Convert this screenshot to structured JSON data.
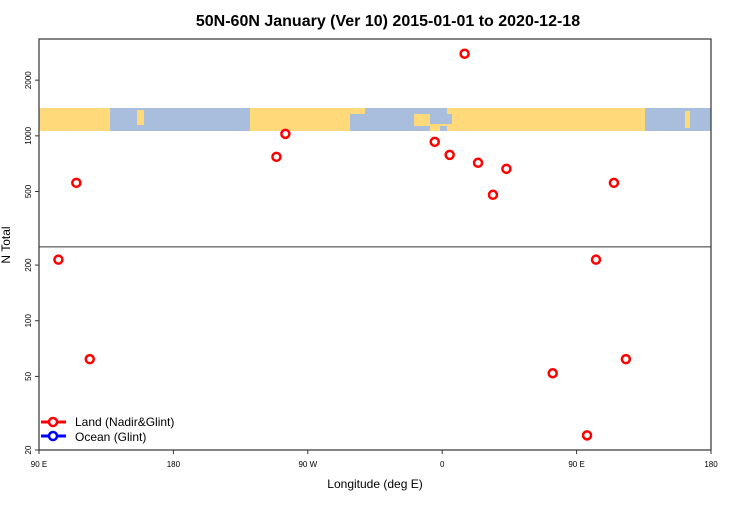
{
  "chart_data": {
    "type": "scatter",
    "title": "50N-60N January (Ver 10)   2015-01-01 to 2020-12-18",
    "xlabel": "Longitude (deg E)",
    "ylabel": "N Total",
    "xlim": [
      90,
      540
    ],
    "ylim": [
      20,
      3340
    ],
    "yscale": "log",
    "grid": false,
    "x_ticks": [
      {
        "value": 90,
        "label": "90 E"
      },
      {
        "value": 180,
        "label": "180"
      },
      {
        "value": 270,
        "label": "90 W"
      },
      {
        "value": 360,
        "label": "0"
      },
      {
        "value": 450,
        "label": "90 E"
      },
      {
        "value": 540,
        "label": "180"
      }
    ],
    "y_ticks": [
      {
        "value": 20,
        "label": "20"
      },
      {
        "value": 50,
        "label": "50"
      },
      {
        "value": 100,
        "label": "100"
      },
      {
        "value": 200,
        "label": "200"
      },
      {
        "value": 500,
        "label": "500"
      },
      {
        "value": 1000,
        "label": "1000"
      },
      {
        "value": 2000,
        "label": "2000"
      }
    ],
    "divider_value": 251,
    "legend_placement": "bottom-left",
    "series": [
      {
        "name": "Land (Nadir&Glint)",
        "color": "#ff0000",
        "points": [
          [
            103,
            214
          ],
          [
            115,
            557
          ],
          [
            124,
            62
          ],
          [
            249,
            770
          ],
          [
            255,
            1025
          ],
          [
            375,
            2780
          ],
          [
            355,
            928
          ],
          [
            365,
            789
          ],
          [
            384,
            715
          ],
          [
            394,
            480
          ],
          [
            403,
            663
          ],
          [
            434,
            52
          ],
          [
            457,
            24
          ],
          [
            463,
            214
          ],
          [
            475,
            557
          ],
          [
            483,
            62
          ]
        ]
      },
      {
        "name": "Ocean (Glint)",
        "color": "#0000ff",
        "points": []
      }
    ],
    "map_band": {
      "land_color": "#ffd97a",
      "ocean_color": "#a8bedc"
    }
  }
}
